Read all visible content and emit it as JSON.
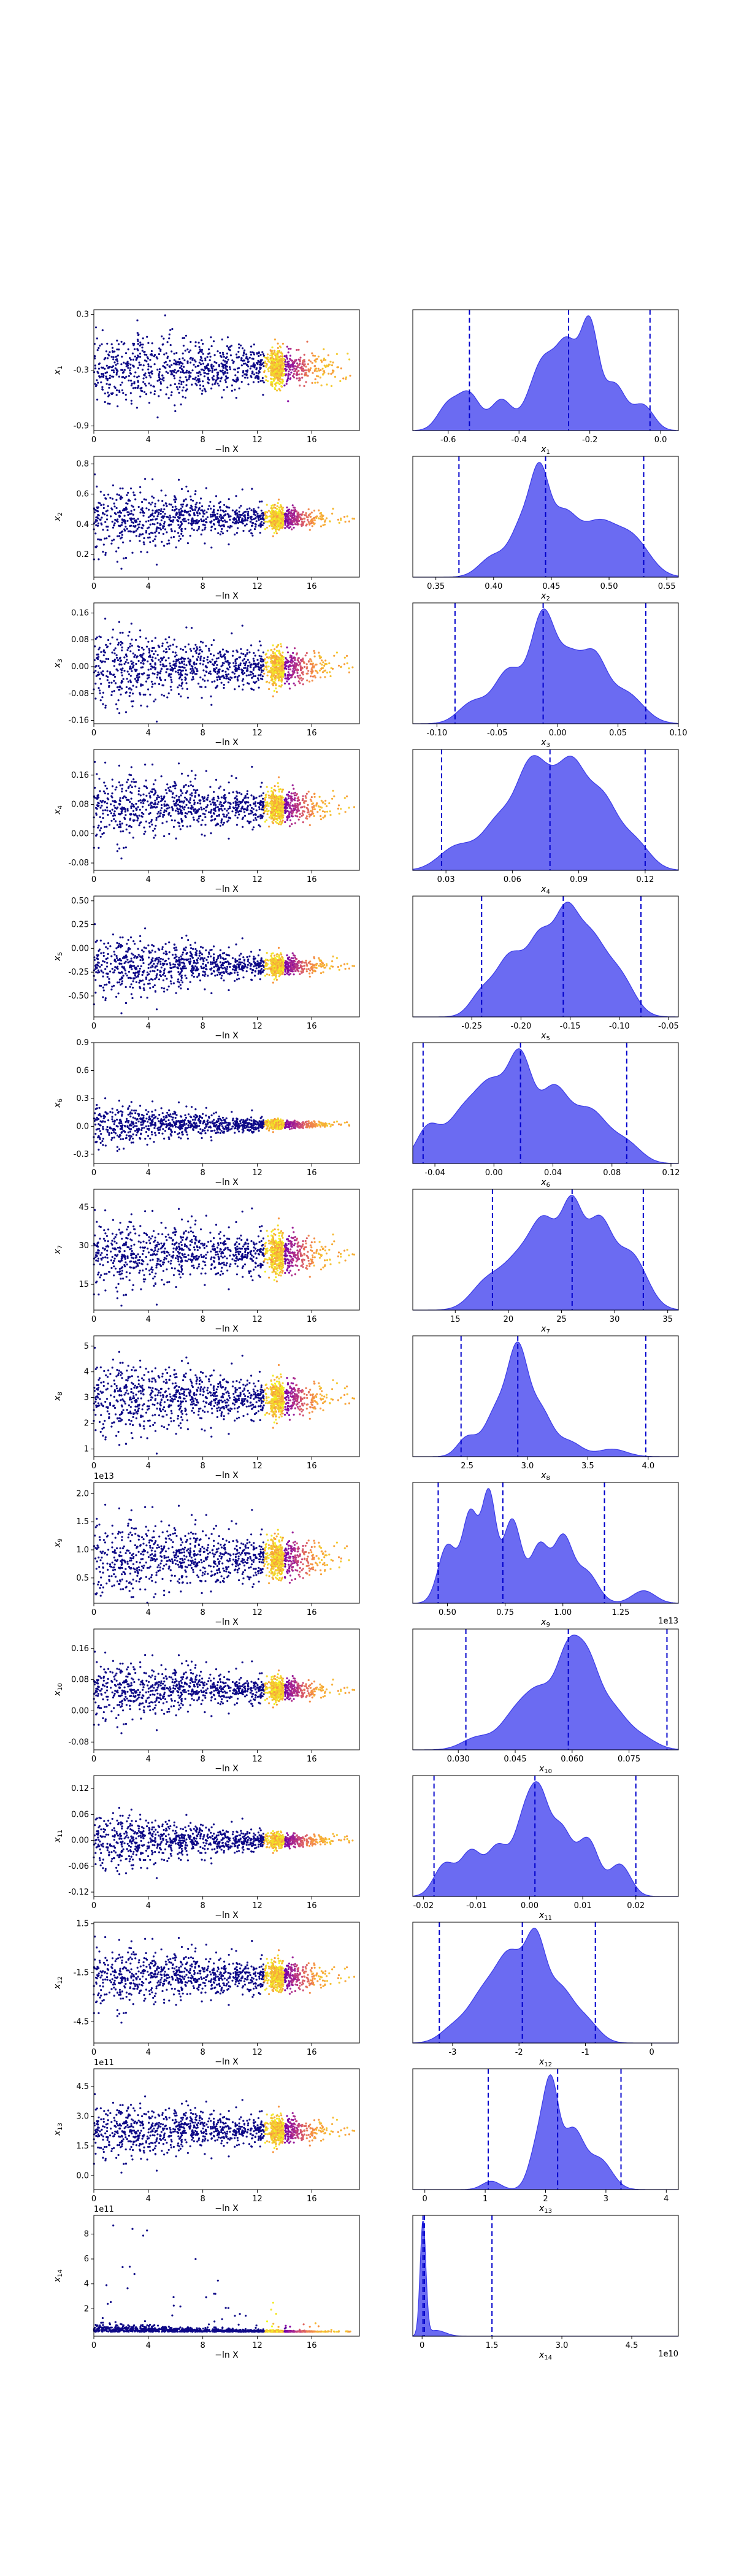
{
  "chart_data": [
    {
      "type": "scatter",
      "ylabel": "x_1",
      "yname": "x",
      "ysub": "1",
      "xlabel": "−ln X",
      "xlim": [
        0,
        19.5
      ],
      "xticks": [
        0,
        4,
        8,
        12,
        16
      ],
      "ylim": [
        -0.95,
        0.35
      ],
      "yticks": [
        "0.3",
        "-0.3",
        "-0.9"
      ],
      "yticksv": [
        0.3,
        -0.3,
        -0.9
      ],
      "center": -0.28,
      "spread": 0.22,
      "converge": 0.6
    },
    {
      "type": "area",
      "xlabel": "x_1",
      "xname": "x",
      "xsub": "1",
      "xlim": [
        -0.7,
        0.05
      ],
      "xticks": [
        "-0.6",
        "-0.4",
        "-0.2",
        "0.0"
      ],
      "xticksv": [
        -0.6,
        -0.4,
        -0.2,
        0.0
      ],
      "quantiles": [
        -0.54,
        -0.26,
        -0.03
      ],
      "peaks": [
        [
          -0.6,
          0.25,
          0.03
        ],
        [
          -0.54,
          0.35,
          0.03
        ],
        [
          -0.45,
          0.3,
          0.03
        ],
        [
          -0.33,
          0.7,
          0.04
        ],
        [
          -0.26,
          0.72,
          0.03
        ],
        [
          -0.2,
          1.0,
          0.025
        ],
        [
          -0.13,
          0.45,
          0.03
        ],
        [
          -0.05,
          0.25,
          0.03
        ]
      ]
    },
    {
      "type": "scatter",
      "ylabel": "x_2",
      "yname": "x",
      "ysub": "2",
      "xlabel": "−ln X",
      "xlim": [
        0,
        19.5
      ],
      "xticks": [
        0,
        4,
        8,
        12,
        16
      ],
      "ylim": [
        0.05,
        0.85
      ],
      "yticks": [
        "0.8",
        "0.6",
        "0.4",
        "0.2"
      ],
      "yticksv": [
        0.8,
        0.6,
        0.4,
        0.2
      ],
      "center": 0.44,
      "spread": 0.12,
      "converge": 0.75
    },
    {
      "type": "area",
      "xlabel": "x_2",
      "xname": "x",
      "xsub": "2",
      "xlim": [
        0.33,
        0.56
      ],
      "xticks": [
        "0.35",
        "0.40",
        "0.45",
        "0.50",
        "0.55"
      ],
      "xticksv": [
        0.35,
        0.4,
        0.45,
        0.5,
        0.55
      ],
      "quantiles": [
        0.37,
        0.445,
        0.53
      ],
      "peaks": [
        [
          0.4,
          0.25,
          0.012
        ],
        [
          0.425,
          0.6,
          0.01
        ],
        [
          0.44,
          1.0,
          0.008
        ],
        [
          0.46,
          0.7,
          0.012
        ],
        [
          0.49,
          0.6,
          0.015
        ],
        [
          0.52,
          0.45,
          0.015
        ]
      ]
    },
    {
      "type": "scatter",
      "ylabel": "x_3",
      "yname": "x",
      "ysub": "3",
      "xlabel": "−ln X",
      "xlim": [
        0,
        19.5
      ],
      "xticks": [
        0,
        4,
        8,
        12,
        16
      ],
      "ylim": [
        -0.17,
        0.19
      ],
      "yticks": [
        "0.16",
        "0.08",
        "0.00",
        "-0.08",
        "-0.16"
      ],
      "yticksv": [
        0.16,
        0.08,
        0.0,
        -0.08,
        -0.16
      ],
      "center": 0.0,
      "spread": 0.06,
      "converge": 0.6
    },
    {
      "type": "area",
      "xlabel": "x_3",
      "xname": "x",
      "xsub": "3",
      "xlim": [
        -0.12,
        0.1
      ],
      "xticks": [
        "-0.10",
        "-0.05",
        "0.00",
        "0.05",
        "0.10"
      ],
      "xticksv": [
        -0.1,
        -0.05,
        0.0,
        0.05,
        0.1
      ],
      "quantiles": [
        -0.085,
        -0.012,
        0.073
      ],
      "peaks": [
        [
          -0.07,
          0.2,
          0.012
        ],
        [
          -0.04,
          0.5,
          0.012
        ],
        [
          -0.012,
          1.0,
          0.01
        ],
        [
          0.01,
          0.55,
          0.01
        ],
        [
          0.03,
          0.55,
          0.01
        ],
        [
          0.055,
          0.3,
          0.015
        ]
      ]
    },
    {
      "type": "scatter",
      "ylabel": "x_4",
      "yname": "x",
      "ysub": "4",
      "xlabel": "−ln X",
      "xlim": [
        0,
        19.5
      ],
      "xticks": [
        0,
        4,
        8,
        12,
        16
      ],
      "ylim": [
        -0.1,
        0.23
      ],
      "yticks": [
        "0.16",
        "0.08",
        "0.00",
        "-0.08"
      ],
      "yticksv": [
        0.16,
        0.08,
        0.0,
        -0.08
      ],
      "center": 0.075,
      "spread": 0.05,
      "converge": 0.6
    },
    {
      "type": "area",
      "xlabel": "x_4",
      "xname": "x",
      "xsub": "4",
      "xlim": [
        0.015,
        0.135
      ],
      "xticks": [
        "0.03",
        "0.06",
        "0.09",
        "0.12"
      ],
      "xticksv": [
        0.03,
        0.06,
        0.09,
        0.12
      ],
      "quantiles": [
        0.028,
        0.077,
        0.12
      ],
      "peaks": [
        [
          0.035,
          0.25,
          0.008
        ],
        [
          0.055,
          0.55,
          0.008
        ],
        [
          0.068,
          0.85,
          0.006
        ],
        [
          0.077,
          0.6,
          0.006
        ],
        [
          0.087,
          0.92,
          0.006
        ],
        [
          0.1,
          0.75,
          0.007
        ],
        [
          0.115,
          0.3,
          0.007
        ]
      ]
    },
    {
      "type": "scatter",
      "ylabel": "x_5",
      "yname": "x",
      "ysub": "5",
      "xlabel": "−ln X",
      "xlim": [
        0,
        19.5
      ],
      "xticks": [
        0,
        4,
        8,
        12,
        16
      ],
      "ylim": [
        -0.72,
        0.55
      ],
      "yticks": [
        "0.50",
        "0.25",
        "0.00",
        "-0.25",
        "-0.50"
      ],
      "yticksv": [
        0.5,
        0.25,
        0.0,
        -0.25,
        -0.5
      ],
      "center": -0.18,
      "spread": 0.18,
      "converge": 0.75
    },
    {
      "type": "area",
      "xlabel": "x_5",
      "xname": "x",
      "xsub": "5",
      "xlim": [
        -0.31,
        -0.04
      ],
      "xticks": [
        "-0.25",
        "-0.20",
        "-0.15",
        "-0.10",
        "-0.05"
      ],
      "xticksv": [
        -0.25,
        -0.2,
        -0.15,
        -0.1,
        -0.05
      ],
      "quantiles": [
        -0.24,
        -0.157,
        -0.078
      ],
      "peaks": [
        [
          -0.24,
          0.25,
          0.012
        ],
        [
          -0.21,
          0.7,
          0.015
        ],
        [
          -0.18,
          0.8,
          0.012
        ],
        [
          -0.155,
          1.0,
          0.012
        ],
        [
          -0.13,
          0.85,
          0.015
        ],
        [
          -0.1,
          0.45,
          0.015
        ]
      ]
    },
    {
      "type": "scatter",
      "ylabel": "x_6",
      "yname": "x",
      "ysub": "6",
      "xlabel": "−ln X",
      "xlim": [
        0,
        19.5
      ],
      "xticks": [
        0,
        4,
        8,
        12,
        16
      ],
      "ylim": [
        -0.4,
        0.9
      ],
      "yticks": [
        "0.9",
        "0.6",
        "0.3",
        "0.0",
        "-0.3"
      ],
      "yticksv": [
        0.9,
        0.6,
        0.3,
        0.0,
        -0.3
      ],
      "center": 0.02,
      "spread": 0.12,
      "converge": 0.85
    },
    {
      "type": "area",
      "xlabel": "x_6",
      "xname": "x",
      "xsub": "6",
      "xlim": [
        -0.055,
        0.125
      ],
      "xticks": [
        "-0.04",
        "0.00",
        "0.04",
        "0.08",
        "0.12"
      ],
      "xticksv": [
        -0.04,
        0.0,
        0.04,
        0.08,
        0.12
      ],
      "quantiles": [
        -0.048,
        0.018,
        0.09
      ],
      "peaks": [
        [
          -0.045,
          0.35,
          0.008
        ],
        [
          -0.02,
          0.55,
          0.012
        ],
        [
          0.0,
          0.7,
          0.01
        ],
        [
          0.018,
          1.0,
          0.008
        ],
        [
          0.04,
          0.75,
          0.01
        ],
        [
          0.065,
          0.55,
          0.012
        ],
        [
          0.09,
          0.2,
          0.01
        ]
      ]
    },
    {
      "type": "scatter",
      "ylabel": "x_7",
      "yname": "x",
      "ysub": "7",
      "xlabel": "−ln X",
      "xlim": [
        0,
        19.5
      ],
      "xticks": [
        0,
        4,
        8,
        12,
        16
      ],
      "ylim": [
        5,
        52
      ],
      "yticks": [
        "45",
        "30",
        "15"
      ],
      "yticksv": [
        45,
        30,
        15
      ],
      "center": 27,
      "spread": 7,
      "converge": 0.5
    },
    {
      "type": "area",
      "xlabel": "x_7",
      "xname": "x",
      "xsub": "7",
      "xlim": [
        11,
        36
      ],
      "xticks": [
        "15",
        "20",
        "25",
        "30",
        "35"
      ],
      "xticksv": [
        15,
        20,
        25,
        30,
        35
      ],
      "quantiles": [
        18.5,
        26,
        32.7
      ],
      "peaks": [
        [
          18,
          0.3,
          1.5
        ],
        [
          21,
          0.5,
          1.5
        ],
        [
          23.5,
          0.85,
          1.3
        ],
        [
          26,
          1.0,
          1.0
        ],
        [
          28.5,
          0.9,
          1.2
        ],
        [
          31.5,
          0.6,
          1.5
        ]
      ]
    },
    {
      "type": "scatter",
      "ylabel": "x_8",
      "yname": "x",
      "ysub": "8",
      "xlabel": "−ln X",
      "xlim": [
        0,
        19.5
      ],
      "xticks": [
        0,
        4,
        8,
        12,
        16
      ],
      "ylim": [
        0.7,
        5.4
      ],
      "yticks": [
        "5",
        "4",
        "3",
        "2",
        "1"
      ],
      "yticksv": [
        5,
        4,
        3,
        2,
        1
      ],
      "center": 3.0,
      "spread": 0.8,
      "converge": 0.6
    },
    {
      "type": "area",
      "xlabel": "x_8",
      "xname": "x",
      "xsub": "8",
      "xlim": [
        2.05,
        4.25
      ],
      "xticks": [
        "2.5",
        "3.0",
        "3.5",
        "4.0"
      ],
      "xticksv": [
        2.5,
        3.0,
        3.5,
        4.0
      ],
      "quantiles": [
        2.45,
        2.92,
        3.98
      ],
      "peaks": [
        [
          2.5,
          0.2,
          0.08
        ],
        [
          2.75,
          0.5,
          0.1
        ],
        [
          2.92,
          1.0,
          0.08
        ],
        [
          3.1,
          0.5,
          0.1
        ],
        [
          3.35,
          0.15,
          0.1
        ],
        [
          3.7,
          0.08,
          0.12
        ]
      ]
    },
    {
      "type": "scatter",
      "ylabel": "x_9",
      "yname": "x",
      "ysub": "9",
      "xlabel": "−ln X",
      "offset": "1e13",
      "xlim": [
        0,
        19.5
      ],
      "xticks": [
        0,
        4,
        8,
        12,
        16
      ],
      "ylim": [
        0.05,
        2.2
      ],
      "yticks": [
        "2.0",
        "1.5",
        "1.0",
        "0.5"
      ],
      "yticksv": [
        2.0,
        1.5,
        1.0,
        0.5
      ],
      "center": 0.85,
      "spread": 0.4,
      "converge": 0.6
    },
    {
      "type": "area",
      "xlabel": "x_9",
      "xname": "x",
      "xsub": "9",
      "offset": "1e13",
      "xlim": [
        0.35,
        1.5
      ],
      "xticks": [
        "0.50",
        "0.75",
        "1.00",
        "1.25"
      ],
      "xticksv": [
        0.5,
        0.75,
        1.0,
        1.25
      ],
      "quantiles": [
        0.46,
        0.74,
        1.18
      ],
      "peaks": [
        [
          0.5,
          0.55,
          0.04
        ],
        [
          0.6,
          0.85,
          0.035
        ],
        [
          0.68,
          1.0,
          0.03
        ],
        [
          0.78,
          0.8,
          0.04
        ],
        [
          0.9,
          0.55,
          0.04
        ],
        [
          1.0,
          0.6,
          0.04
        ],
        [
          1.1,
          0.3,
          0.05
        ],
        [
          1.35,
          0.12,
          0.05
        ]
      ]
    },
    {
      "type": "scatter",
      "ylabel": "x_10",
      "yname": "x",
      "ysub": "10",
      "xlabel": "−ln X",
      "xlim": [
        0,
        19.5
      ],
      "xticks": [
        0,
        4,
        8,
        12,
        16
      ],
      "ylim": [
        -0.1,
        0.21
      ],
      "yticks": [
        "0.16",
        "0.08",
        "0.00",
        "-0.08"
      ],
      "yticksv": [
        0.16,
        0.08,
        0.0,
        -0.08
      ],
      "center": 0.055,
      "spread": 0.04,
      "converge": 0.7
    },
    {
      "type": "area",
      "xlabel": "x_10",
      "xname": "x",
      "xsub": "10",
      "xlim": [
        0.018,
        0.088
      ],
      "xticks": [
        "0.030",
        "0.045",
        "0.060",
        "0.075"
      ],
      "xticksv": [
        0.03,
        0.045,
        0.06,
        0.075
      ],
      "quantiles": [
        0.032,
        0.059,
        0.085
      ],
      "peaks": [
        [
          0.035,
          0.15,
          0.004
        ],
        [
          0.045,
          0.4,
          0.004
        ],
        [
          0.052,
          0.65,
          0.004
        ],
        [
          0.059,
          1.0,
          0.003
        ],
        [
          0.064,
          0.85,
          0.003
        ],
        [
          0.07,
          0.5,
          0.004
        ],
        [
          0.078,
          0.15,
          0.004
        ]
      ]
    },
    {
      "type": "scatter",
      "ylabel": "x_11",
      "yname": "x",
      "ysub": "11",
      "xlabel": "−ln X",
      "xlim": [
        0,
        19.5
      ],
      "xticks": [
        0,
        4,
        8,
        12,
        16
      ],
      "ylim": [
        -0.13,
        0.15
      ],
      "yticks": [
        "0.12",
        "0.06",
        "0.00",
        "-0.06",
        "-0.12"
      ],
      "yticksv": [
        0.12,
        0.06,
        0.0,
        -0.06,
        -0.12
      ],
      "center": 0.0,
      "spread": 0.035,
      "converge": 0.8
    },
    {
      "type": "area",
      "xlabel": "x_11",
      "xname": "x",
      "xsub": "11",
      "xlim": [
        -0.022,
        0.028
      ],
      "xticks": [
        "-0.02",
        "-0.01",
        "0.00",
        "0.01",
        "0.02"
      ],
      "xticksv": [
        -0.02,
        -0.01,
        0.0,
        0.01,
        0.02
      ],
      "quantiles": [
        -0.018,
        0.001,
        0.02
      ],
      "peaks": [
        [
          -0.016,
          0.4,
          0.002
        ],
        [
          -0.011,
          0.55,
          0.002
        ],
        [
          -0.006,
          0.6,
          0.002
        ],
        [
          -0.001,
          0.9,
          0.002
        ],
        [
          0.002,
          1.0,
          0.0018
        ],
        [
          0.006,
          0.8,
          0.002
        ],
        [
          0.011,
          0.7,
          0.002
        ],
        [
          0.017,
          0.4,
          0.002
        ]
      ]
    },
    {
      "type": "scatter",
      "ylabel": "x_12",
      "yname": "x",
      "ysub": "12",
      "xlabel": "−ln X",
      "xlim": [
        0,
        19.5
      ],
      "xticks": [
        0,
        4,
        8,
        12,
        16
      ],
      "ylim": [
        -5.8,
        1.6
      ],
      "yticks": [
        "1.5",
        "-1.5",
        "-4.5"
      ],
      "yticksv": [
        1.5,
        -1.5,
        -4.5
      ],
      "center": -1.7,
      "spread": 1.0,
      "converge": 0.6
    },
    {
      "type": "area",
      "xlabel": "x_12",
      "xname": "x",
      "xsub": "12",
      "xlim": [
        -3.6,
        0.4
      ],
      "xticks": [
        "-3",
        "-2",
        "-1",
        "0"
      ],
      "xticksv": [
        -3,
        -2,
        -1,
        0
      ],
      "quantiles": [
        -3.2,
        -1.95,
        -0.85
      ],
      "peaks": [
        [
          -3.0,
          0.15,
          0.2
        ],
        [
          -2.5,
          0.6,
          0.25
        ],
        [
          -2.1,
          0.85,
          0.2
        ],
        [
          -1.75,
          1.0,
          0.15
        ],
        [
          -1.4,
          0.6,
          0.2
        ],
        [
          -1.0,
          0.25,
          0.2
        ]
      ]
    },
    {
      "type": "scatter",
      "ylabel": "x_13",
      "yname": "x",
      "ysub": "13",
      "xlabel": "−ln X",
      "offset": "1e11",
      "xlim": [
        0,
        19.5
      ],
      "xticks": [
        0,
        4,
        8,
        12,
        16
      ],
      "ylim": [
        -0.7,
        5.4
      ],
      "yticks": [
        "4.5",
        "3.0",
        "1.5",
        "0.0"
      ],
      "yticksv": [
        4.5,
        3.0,
        1.5,
        0.0
      ],
      "center": 2.3,
      "spread": 0.75,
      "converge": 0.6
    },
    {
      "type": "area",
      "xlabel": "x_13",
      "xname": "x",
      "xsub": "13",
      "xlim": [
        -0.2,
        4.2
      ],
      "xticks": [
        "0",
        "1",
        "2",
        "3",
        "4"
      ],
      "xticksv": [
        0,
        1,
        2,
        3,
        4
      ],
      "quantiles": [
        1.05,
        2.2,
        3.25
      ],
      "peaks": [
        [
          1.1,
          0.1,
          0.15
        ],
        [
          1.9,
          0.6,
          0.15
        ],
        [
          2.1,
          1.0,
          0.12
        ],
        [
          2.45,
          0.7,
          0.18
        ],
        [
          2.9,
          0.35,
          0.2
        ]
      ]
    },
    {
      "type": "scatter",
      "ylabel": "x_14",
      "yname": "x",
      "ysub": "14",
      "xlabel": "−ln X",
      "offset": "1e11",
      "xlim": [
        0,
        19.5
      ],
      "xticks": [
        0,
        4,
        8,
        12,
        16
      ],
      "ylim": [
        -0.2,
        9.5
      ],
      "yticks": [
        "8",
        "6",
        "4",
        "2"
      ],
      "yticksv": [
        8,
        6,
        4,
        2
      ],
      "center": 0.15,
      "spread": 0.3,
      "converge": 0.9,
      "skew": true
    },
    {
      "type": "area",
      "xlabel": "x_14",
      "xname": "x",
      "xsub": "14",
      "offset": "1e10",
      "xlim": [
        -0.2,
        5.5
      ],
      "xticks": [
        "0",
        "1.5",
        "3.0",
        "4.5"
      ],
      "xticksv": [
        0,
        1.5,
        3.0,
        4.5
      ],
      "quantiles": [
        0.02,
        0.05,
        1.5
      ],
      "peaks": [
        [
          0.02,
          1.0,
          0.06
        ],
        [
          0.3,
          0.05,
          0.2
        ]
      ]
    }
  ]
}
